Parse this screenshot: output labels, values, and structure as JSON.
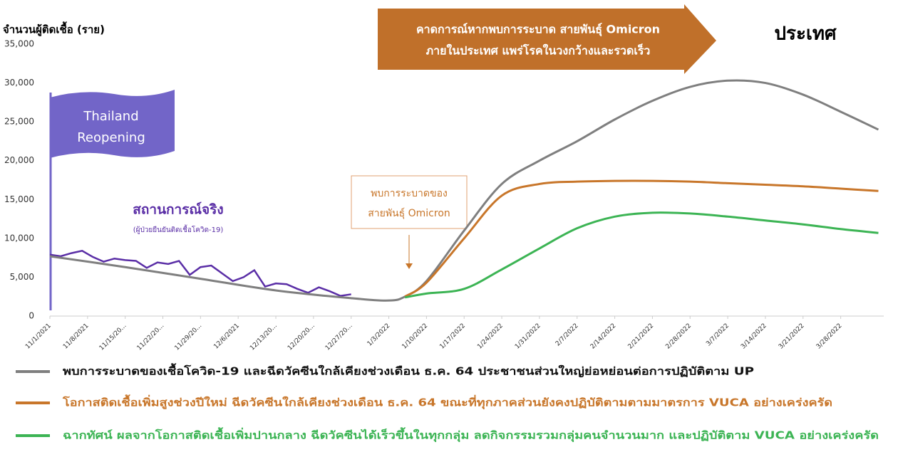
{
  "chart_data": {
    "type": "line",
    "title": "ประเทศ",
    "y_label": "จำนวนผู้ติดเชื้อ (ราย)",
    "banner": [
      "คาดการณ์หากพบการระบาด สายพันธุ์ Omicron",
      "ภายในประเทศ แพร่โรคในวงกว้างและรวดเร็ว"
    ],
    "flag": [
      "Thailand",
      "Reopening"
    ],
    "actual_note": "(ผู้ป่วยยืนยันติดเชื้อโควิด-19)",
    "omicron_note": [
      "พบการระบาดของ",
      "สายพันธุ์ Omicron"
    ],
    "xlim": [
      "2021-11-01",
      "2022-04-05"
    ],
    "xticks": [
      {
        "value": "2021-11-01",
        "label": "11/1/2021"
      },
      {
        "value": "2021-11-08",
        "label": "11/8/2021"
      },
      {
        "value": "2021-11-15",
        "label": "11/15/20..."
      },
      {
        "value": "2021-11-22",
        "label": "11/22/20..."
      },
      {
        "value": "2021-11-29",
        "label": "11/29/20..."
      },
      {
        "value": "2021-12-06",
        "label": "12/6/2021"
      },
      {
        "value": "2021-12-13",
        "label": "12/13/20..."
      },
      {
        "value": "2021-12-20",
        "label": "12/20/20..."
      },
      {
        "value": "2021-12-27",
        "label": "12/27/20..."
      },
      {
        "value": "2022-01-03",
        "label": "1/3/2022"
      },
      {
        "value": "2022-01-10",
        "label": "1/10/2022"
      },
      {
        "value": "2022-01-17",
        "label": "1/17/2022"
      },
      {
        "value": "2022-01-24",
        "label": "1/24/2022"
      },
      {
        "value": "2022-01-31",
        "label": "1/31/2022"
      },
      {
        "value": "2022-02-07",
        "label": "2/7/2022"
      },
      {
        "value": "2022-02-14",
        "label": "2/14/2022"
      },
      {
        "value": "2022-02-21",
        "label": "2/21/2022"
      },
      {
        "value": "2022-02-28",
        "label": "2/28/2022"
      },
      {
        "value": "2022-03-07",
        "label": "3/7/2022"
      },
      {
        "value": "2022-03-14",
        "label": "3/14/2022"
      },
      {
        "value": "2022-03-21",
        "label": "3/21/2022"
      },
      {
        "value": "2022-03-28",
        "label": "3/28/2022"
      }
    ],
    "ylim": [
      0,
      35000
    ],
    "yticks": [
      0,
      {
        "value": 5000,
        "label": "5,000"
      },
      {
        "value": 10000,
        "label": "10,000"
      },
      {
        "value": 15000,
        "label": "15,000"
      },
      {
        "value": 20000,
        "label": "20,000"
      },
      {
        "value": 25000,
        "label": "25,000"
      },
      {
        "value": 30000,
        "label": "30,000"
      },
      {
        "value": 35000,
        "label": "35,000"
      }
    ],
    "grid": false,
    "series": [
      {
        "name": "สถานการณ์จริง",
        "color": "#5a2ea6",
        "smooth": false,
        "x": [
          "2021-11-01",
          "2021-11-03",
          "2021-11-05",
          "2021-11-07",
          "2021-11-09",
          "2021-11-11",
          "2021-11-13",
          "2021-11-15",
          "2021-11-17",
          "2021-11-19",
          "2021-11-21",
          "2021-11-23",
          "2021-11-25",
          "2021-11-27",
          "2021-11-29",
          "2021-12-01",
          "2021-12-03",
          "2021-12-05",
          "2021-12-07",
          "2021-12-09",
          "2021-12-11",
          "2021-12-13",
          "2021-12-15",
          "2021-12-17",
          "2021-12-19",
          "2021-12-21",
          "2021-12-23",
          "2021-12-25",
          "2021-12-27"
        ],
        "values": [
          7900,
          7700,
          8100,
          8400,
          7600,
          7000,
          7400,
          7200,
          7100,
          6200,
          6900,
          6700,
          7100,
          5300,
          6300,
          6500,
          5500,
          4500,
          5000,
          5900,
          3800,
          4200,
          4100,
          3500,
          3000,
          3700,
          3200,
          2600,
          2800
        ]
      },
      {
        "name": "พบการระบาดของเชื้อโควิด-19 และฉีดวัคซีนใกล้เคียงช่วงเดือน ธ.ค. 64 ประชาชนส่วนใหญ่ย่อหย่อนต่อการปฏิบัติตาม UP",
        "color": "#7f7f7f",
        "smooth": true,
        "x": [
          "2021-11-01",
          "2021-11-15",
          "2021-11-29",
          "2021-12-13",
          "2021-12-27",
          "2022-01-03",
          "2022-01-06",
          "2022-01-10",
          "2022-01-17",
          "2022-01-24",
          "2022-01-31",
          "2022-02-07",
          "2022-02-14",
          "2022-02-21",
          "2022-02-28",
          "2022-03-07",
          "2022-03-14",
          "2022-03-21",
          "2022-03-28",
          "2022-04-04"
        ],
        "values": [
          7700,
          6300,
          4800,
          3300,
          2300,
          2000,
          2500,
          4500,
          11000,
          17000,
          20000,
          22500,
          25300,
          27700,
          29500,
          30300,
          30000,
          28500,
          26300,
          24000
        ]
      },
      {
        "name": "โอกาสติดเชื้อเพิ่มสูงช่วงปีใหม่ ฉีดวัคซีนใกล้เคียงช่วงเดือน ธ.ค. 64 ขณะที่ทุกภาคส่วนยังคงปฏิบัติตามตามมาตรการ VUCA อย่างเคร่งครัด",
        "color": "#c8762a",
        "smooth": true,
        "x": [
          "2022-01-06",
          "2022-01-10",
          "2022-01-17",
          "2022-01-24",
          "2022-01-31",
          "2022-02-07",
          "2022-02-14",
          "2022-02-21",
          "2022-02-28",
          "2022-03-07",
          "2022-03-14",
          "2022-03-21",
          "2022-03-28",
          "2022-04-04"
        ],
        "values": [
          2500,
          4300,
          10000,
          15500,
          17000,
          17300,
          17400,
          17400,
          17300,
          17100,
          16900,
          16700,
          16400,
          16100
        ]
      },
      {
        "name": "ฉากทัศน์ ผลจากโอกาสติดเชื้อเพิ่มปานกลาง ฉีดวัคซีนได้เร็วขึ้นในทุกกลุ่ม ลดกิจกรรมรวมกลุ่มคนจำนวนมาก และปฏิบัติตาม VUCA อย่างเคร่งครัด",
        "color": "#3cb454",
        "smooth": true,
        "x": [
          "2022-01-06",
          "2022-01-10",
          "2022-01-17",
          "2022-01-24",
          "2022-01-31",
          "2022-02-07",
          "2022-02-14",
          "2022-02-21",
          "2022-02-28",
          "2022-03-07",
          "2022-03-14",
          "2022-03-21",
          "2022-03-28",
          "2022-04-04"
        ],
        "values": [
          2400,
          2900,
          3500,
          6000,
          8700,
          11300,
          12800,
          13300,
          13200,
          12800,
          12300,
          11800,
          11200,
          10700
        ]
      }
    ]
  }
}
